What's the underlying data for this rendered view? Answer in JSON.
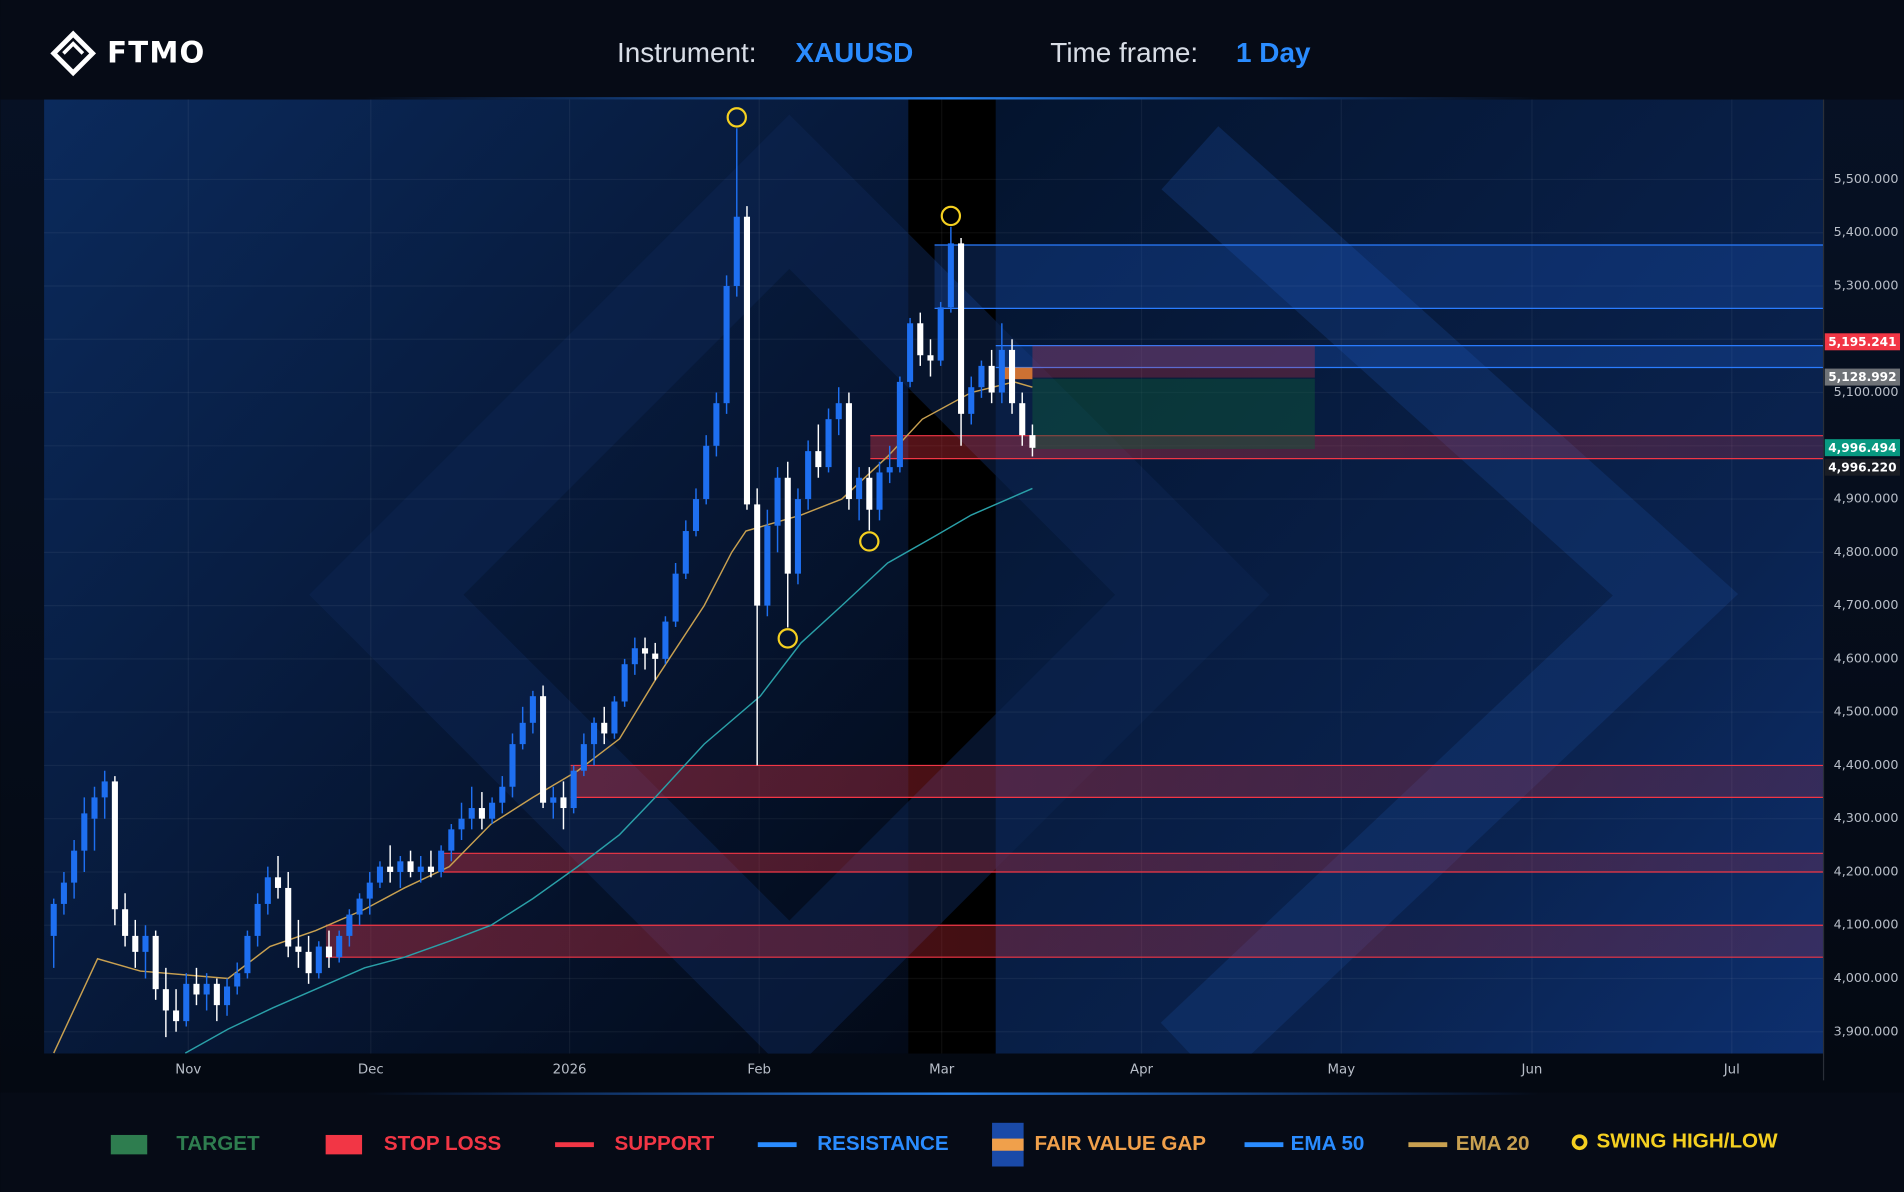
{
  "header": {
    "logo": "FTMO",
    "instrument_label": "Instrument:",
    "instrument": "XAUUSD",
    "timeframe_label": "Time frame:",
    "timeframe": "1 Day"
  },
  "chart_data": {
    "type": "candlestick",
    "x": [
      0,
      1,
      2,
      3,
      4,
      5,
      6,
      7,
      8,
      9,
      10,
      11,
      12,
      13,
      14,
      15,
      16,
      17,
      18,
      19,
      20,
      21,
      22,
      23,
      24,
      25,
      26,
      27,
      28,
      29,
      30,
      31,
      32,
      33,
      34,
      35,
      36,
      37,
      38,
      39,
      40,
      41,
      42,
      43,
      44,
      45,
      46,
      47,
      48,
      49,
      50,
      51,
      52,
      53,
      54,
      55,
      56,
      57,
      58,
      59,
      60,
      61,
      62,
      63,
      64,
      65,
      66,
      67,
      68,
      69,
      70,
      71,
      72,
      73,
      74,
      75,
      76,
      77,
      78,
      79,
      80,
      81,
      82,
      83,
      84,
      85,
      86,
      87,
      88,
      89,
      90,
      91,
      92,
      93,
      94,
      95,
      96
    ],
    "candles": [
      [
        4080,
        4150,
        4020,
        4140
      ],
      [
        4140,
        4200,
        4120,
        4180
      ],
      [
        4180,
        4260,
        4150,
        4240
      ],
      [
        4240,
        4340,
        4200,
        4310
      ],
      [
        4300,
        4360,
        4240,
        4340
      ],
      [
        4340,
        4390,
        4300,
        4370
      ],
      [
        4370,
        4380,
        4100,
        4130
      ],
      [
        4130,
        4160,
        4060,
        4080
      ],
      [
        4080,
        4110,
        4020,
        4050
      ],
      [
        4050,
        4100,
        4000,
        4080
      ],
      [
        4080,
        4090,
        3960,
        3980
      ],
      [
        3980,
        4020,
        3890,
        3940
      ],
      [
        3940,
        3980,
        3900,
        3920
      ],
      [
        3920,
        4010,
        3910,
        3990
      ],
      [
        3990,
        4020,
        3950,
        3970
      ],
      [
        3970,
        4010,
        3940,
        3990
      ],
      [
        3990,
        4000,
        3920,
        3950
      ],
      [
        3950,
        4000,
        3930,
        3985
      ],
      [
        3985,
        4030,
        3970,
        4010
      ],
      [
        4010,
        4090,
        4000,
        4080
      ],
      [
        4080,
        4160,
        4060,
        4140
      ],
      [
        4140,
        4210,
        4120,
        4190
      ],
      [
        4190,
        4230,
        4150,
        4170
      ],
      [
        4170,
        4200,
        4040,
        4060
      ],
      [
        4060,
        4110,
        4020,
        4050
      ],
      [
        4050,
        4080,
        3990,
        4010
      ],
      [
        4010,
        4070,
        4000,
        4060
      ],
      [
        4060,
        4090,
        4020,
        4040
      ],
      [
        4040,
        4090,
        4030,
        4080
      ],
      [
        4080,
        4130,
        4060,
        4120
      ],
      [
        4120,
        4160,
        4100,
        4150
      ],
      [
        4150,
        4200,
        4120,
        4180
      ],
      [
        4180,
        4220,
        4170,
        4210
      ],
      [
        4210,
        4250,
        4180,
        4200
      ],
      [
        4200,
        4230,
        4170,
        4220
      ],
      [
        4220,
        4240,
        4190,
        4200
      ],
      [
        4200,
        4230,
        4180,
        4210
      ],
      [
        4210,
        4240,
        4190,
        4200
      ],
      [
        4200,
        4250,
        4190,
        4240
      ],
      [
        4240,
        4290,
        4220,
        4280
      ],
      [
        4280,
        4330,
        4260,
        4300
      ],
      [
        4300,
        4360,
        4280,
        4320
      ],
      [
        4320,
        4350,
        4280,
        4300
      ],
      [
        4300,
        4340,
        4290,
        4330
      ],
      [
        4330,
        4380,
        4310,
        4360
      ],
      [
        4360,
        4460,
        4340,
        4440
      ],
      [
        4440,
        4510,
        4430,
        4480
      ],
      [
        4480,
        4540,
        4460,
        4530
      ],
      [
        4530,
        4550,
        4320,
        4330
      ],
      [
        4330,
        4360,
        4300,
        4340
      ],
      [
        4340,
        4370,
        4280,
        4320
      ],
      [
        4320,
        4400,
        4310,
        4390
      ],
      [
        4390,
        4460,
        4380,
        4440
      ],
      [
        4440,
        4490,
        4400,
        4480
      ],
      [
        4480,
        4510,
        4440,
        4460
      ],
      [
        4460,
        4530,
        4450,
        4520
      ],
      [
        4520,
        4600,
        4510,
        4590
      ],
      [
        4590,
        4640,
        4570,
        4620
      ],
      [
        4620,
        4640,
        4580,
        4610
      ],
      [
        4610,
        4630,
        4560,
        4600
      ],
      [
        4600,
        4680,
        4590,
        4670
      ],
      [
        4670,
        4780,
        4660,
        4760
      ],
      [
        4760,
        4860,
        4750,
        4840
      ],
      [
        4840,
        4920,
        4830,
        4900
      ],
      [
        4900,
        5020,
        4890,
        5000
      ],
      [
        5000,
        5100,
        4980,
        5080
      ],
      [
        5080,
        5320,
        5060,
        5300
      ],
      [
        5300,
        5596,
        5280,
        5430
      ],
      [
        5430,
        5450,
        4880,
        4890
      ],
      [
        4890,
        4920,
        4400,
        4700
      ],
      [
        4700,
        4880,
        4680,
        4850
      ],
      [
        4850,
        4960,
        4800,
        4940
      ],
      [
        4940,
        4970,
        4659,
        4760
      ],
      [
        4760,
        4920,
        4740,
        4900
      ],
      [
        4900,
        5010,
        4880,
        4990
      ],
      [
        4990,
        5040,
        4940,
        4960
      ],
      [
        4960,
        5070,
        4950,
        5050
      ],
      [
        5050,
        5110,
        5020,
        5080
      ],
      [
        5080,
        5100,
        4880,
        4900
      ],
      [
        4900,
        4960,
        4860,
        4940
      ],
      [
        4940,
        4960,
        4841,
        4880
      ],
      [
        4880,
        4970,
        4860,
        4950
      ],
      [
        4950,
        5000,
        4930,
        4960
      ],
      [
        4960,
        5130,
        4950,
        5120
      ],
      [
        5120,
        5240,
        5110,
        5230
      ],
      [
        5230,
        5250,
        5150,
        5170
      ],
      [
        5170,
        5200,
        5130,
        5160
      ],
      [
        5160,
        5270,
        5150,
        5260
      ],
      [
        5260,
        5411,
        5250,
        5380
      ],
      [
        5380,
        5390,
        5000,
        5060
      ],
      [
        5060,
        5130,
        5040,
        5110
      ],
      [
        5110,
        5160,
        5090,
        5150
      ],
      [
        5150,
        5180,
        5080,
        5100
      ],
      [
        5100,
        5230,
        5080,
        5180
      ],
      [
        5180,
        5200,
        5060,
        5080
      ],
      [
        5080,
        5100,
        5000,
        5020
      ],
      [
        5020,
        5040,
        4980,
        4996.22
      ]
    ],
    "up_color": "#1e6ff0",
    "down_color": "#ffffff",
    "lines": [
      {
        "name": "EMA 20",
        "color": "#c8a050",
        "x": [
          0,
          4.3,
          8.5,
          17.1,
          21.2,
          25.7,
          30.5,
          34.4,
          38.8,
          42.9,
          47,
          51.4,
          55.5,
          59,
          63.8,
          66.5,
          67.9,
          73.3,
          77.3,
          81.8,
          85.2,
          90,
          94.2,
          96
        ],
        "values": [
          3860,
          4037,
          4014,
          4000,
          4060,
          4090,
          4130,
          4170,
          4210,
          4290,
          4340,
          4390,
          4450,
          4560,
          4700,
          4800,
          4840,
          4870,
          4900,
          4980,
          5050,
          5100,
          5120,
          5110
        ]
      },
      {
        "name": "EMA 50",
        "color": "#2aa0a8",
        "x": [
          12.9,
          17.1,
          21.5,
          25.7,
          30.5,
          34.4,
          38.8,
          42.9,
          47,
          51.4,
          55.5,
          59,
          63.8,
          69.3,
          73.3,
          77.3,
          81.8,
          86.4,
          90,
          94.2,
          96
        ],
        "values": [
          3860,
          3905,
          3945,
          3980,
          4020,
          4040,
          4070,
          4100,
          4150,
          4210,
          4270,
          4340,
          4440,
          4530,
          4630,
          4700,
          4780,
          4830,
          4870,
          4905,
          4920
        ]
      }
    ],
    "zones": [
      {
        "kind": "support",
        "from": 50.7,
        "low": 4340,
        "high": 4400
      },
      {
        "kind": "support",
        "from": 38.2,
        "low": 4200,
        "high": 4235
      },
      {
        "kind": "support",
        "from": 26.7,
        "low": 4040,
        "high": 4100
      },
      {
        "kind": "support",
        "from": 80.1,
        "low": 4976,
        "high": 5019
      },
      {
        "kind": "resistance",
        "from": 86.4,
        "low": 5258,
        "high": 5377
      },
      {
        "kind": "resistance",
        "from": 92.4,
        "low": 5147,
        "high": 5188
      },
      {
        "kind": "stop",
        "from": 96,
        "to": 123.7,
        "low": 5128,
        "high": 5188
      },
      {
        "kind": "target",
        "from": 96,
        "to": 123.7,
        "low": 4994,
        "high": 5126
      },
      {
        "kind": "fvg",
        "from": 93,
        "to": 96,
        "low": 5125,
        "high": 5147
      }
    ],
    "swings": [
      {
        "x": 67,
        "y": 5596
      },
      {
        "x": 88,
        "y": 5411
      },
      {
        "x": 80,
        "y": 4841
      },
      {
        "x": 72,
        "y": 4659
      }
    ],
    "price_labels": [
      {
        "value": 5195.241,
        "label": "5,195.241",
        "color": "#f23645"
      },
      {
        "value": 5128.992,
        "label": "5,128.992",
        "color": "#6f7378"
      },
      {
        "value": 4996.494,
        "label": "4,996.494",
        "color": "#089981"
      },
      {
        "value": 4996.22,
        "label": "4,996.220",
        "color": "#1a1d24"
      }
    ],
    "xlim": [
      -0.95,
      173.6
    ],
    "xticks": [
      {
        "value": 13.2,
        "label": "Nov"
      },
      {
        "value": 31.1,
        "label": "Dec"
      },
      {
        "value": 50.6,
        "label": "2026"
      },
      {
        "value": 69.2,
        "label": "Feb"
      },
      {
        "value": 87.1,
        "label": "Mar"
      },
      {
        "value": 106.7,
        "label": "Apr"
      },
      {
        "value": 126.3,
        "label": "May"
      },
      {
        "value": 145,
        "label": "Jun"
      },
      {
        "value": 164.6,
        "label": "Jul"
      }
    ],
    "ylim": [
      3859,
      5650
    ],
    "yticks": [
      {
        "value": 3900,
        "label": "3,900.000"
      },
      {
        "value": 4000,
        "label": "4,000.000"
      },
      {
        "value": 4100,
        "label": "4,100.000"
      },
      {
        "value": 4200,
        "label": "4,200.000"
      },
      {
        "value": 4300,
        "label": "4,300.000"
      },
      {
        "value": 4400,
        "label": "4,400.000"
      },
      {
        "value": 4500,
        "label": "4,500.000"
      },
      {
        "value": 4600,
        "label": "4,600.000"
      },
      {
        "value": 4700,
        "label": "4,700.000"
      },
      {
        "value": 4800,
        "label": "4,800.000"
      },
      {
        "value": 4900,
        "label": "4,900.000"
      },
      {
        "value": 5000,
        "label": "5,000.000"
      },
      {
        "value": 5100,
        "label": "5,100.000"
      },
      {
        "value": 5200,
        "label": "5,200.000"
      },
      {
        "value": 5300,
        "label": "5,300.000"
      },
      {
        "value": 5400,
        "label": "5,400.000"
      },
      {
        "value": 5500,
        "label": "5,500.000"
      }
    ],
    "grid": true,
    "legend": [
      {
        "label": "TARGET",
        "color": "#2e7d4f",
        "shape": "box"
      },
      {
        "label": "STOP LOSS",
        "color": "#f23645",
        "shape": "box"
      },
      {
        "label": "SUPPORT",
        "color": "#f23645",
        "shape": "line"
      },
      {
        "label": "RESISTANCE",
        "color": "#2a8cff",
        "shape": "line"
      },
      {
        "label": "FAIR VALUE GAP",
        "color": "#f0a04b",
        "shape": "gap"
      },
      {
        "label": "EMA 50",
        "color": "#2a8cff",
        "shape": "line"
      },
      {
        "label": "EMA 20",
        "color": "#c8a050",
        "shape": "line"
      },
      {
        "label": "SWING HIGH/LOW",
        "color": "#f5d020",
        "shape": "dot"
      }
    ]
  }
}
